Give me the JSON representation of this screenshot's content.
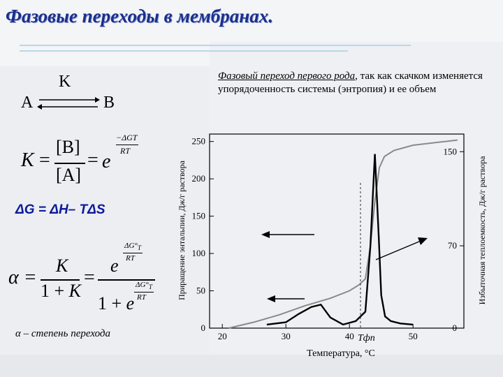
{
  "title": "Фазовые переходы в мембранах.",
  "description": {
    "highlight": "Фазовый переход первого рода",
    "rest": ", так как скачком изменяется упорядоченность системы (энтропия) и ее объем"
  },
  "reaction": {
    "reactant": "A",
    "product": "B",
    "constant": "K"
  },
  "equilibrium_formula": {
    "lhs": "K",
    "numerator": "[B]",
    "denominator": "[A]",
    "exponent_numerator": "−ΔGT",
    "exponent_denominator": "RT"
  },
  "gibbs_equation": "ΔG = ΔH– TΔS",
  "alpha_caption": "α – степень перехода",
  "chart": {
    "y_left_label": "Приращение энтальпии, Дж/г раствора",
    "y_right_label": "Избыточная теплоемкость, Дж/г раствора",
    "x_label": "Температура, °C",
    "tfp_label": "Tфп"
  },
  "chart_data": {
    "type": "line",
    "xlim": [
      18,
      58
    ],
    "ylim_left": [
      0,
      260
    ],
    "ylim_right": [
      0,
      165
    ],
    "x_ticks": [
      20,
      30,
      40,
      50
    ],
    "y_left_ticks": [
      0,
      50,
      100,
      150,
      200,
      250
    ],
    "y_right_ticks": [
      0,
      70,
      150
    ],
    "series": [
      {
        "axis": "left",
        "x": [
          21,
          25,
          29,
          33,
          37,
          40,
          41.5,
          42.5,
          43.3,
          44,
          44.7,
          45.5,
          47,
          50,
          55,
          57
        ],
        "y": [
          0,
          8,
          18,
          30,
          40,
          50,
          58,
          66,
          110,
          170,
          215,
          230,
          238,
          245,
          250,
          252
        ]
      },
      {
        "axis": "right",
        "x": [
          27,
          30,
          32,
          34,
          35.5,
          37,
          39,
          41,
          42.5,
          43.3,
          44,
          44.6,
          45,
          45.6,
          46.5,
          48,
          50
        ],
        "y": [
          3,
          5,
          12,
          18,
          20,
          9,
          3,
          6,
          14,
          70,
          148,
          78,
          28,
          10,
          6,
          4,
          3
        ]
      }
    ]
  }
}
